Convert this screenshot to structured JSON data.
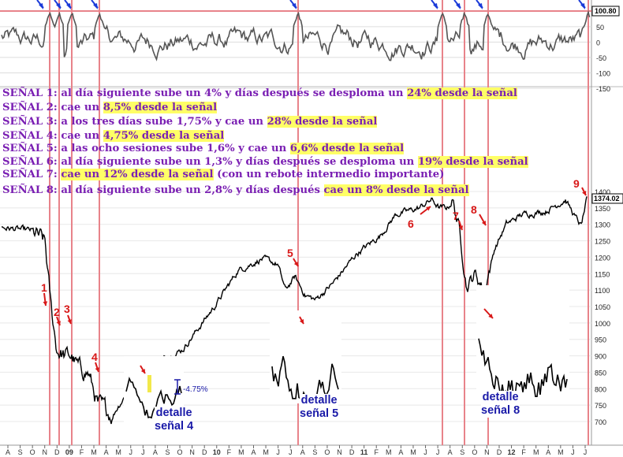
{
  "colors": {
    "background": "#ffffff",
    "price": "#000000",
    "oscillator": "#555555",
    "signal_line": "#e8838a",
    "arrow_red": "#d81818",
    "arrow_blue": "#1a3ad8",
    "text_purple": "#7a1fb3",
    "highlight": "#ffff66",
    "detail_text": "#1a1aa8"
  },
  "signals": [
    {
      "id": "1",
      "prefix": "SEÑAL 1: al día siguiente sube un 4% y días después se desploma un ",
      "highlight": "24% desde la señal",
      "suffix": ""
    },
    {
      "id": "2",
      "prefix": "SEÑAL 2:  cae un ",
      "highlight": "8,5% desde la señal",
      "suffix": ""
    },
    {
      "id": "3",
      "prefix": "SEÑAL 3:  a los tres días sube 1,75% y cae un ",
      "highlight": "28% desde la señal",
      "suffix": ""
    },
    {
      "id": "4",
      "prefix": "SEÑAL 4:  cae un ",
      "highlight": "4,75% desde la señal",
      "suffix": ""
    },
    {
      "id": "5",
      "prefix": "SEÑAL 5:  a las ocho sesiones sube 1,6% y cae un ",
      "highlight": "6,6% desde la señal",
      "suffix": ""
    },
    {
      "id": "6",
      "prefix": "SEÑAL 6: al día siguiente sube un 1,3% y días después se desploma un ",
      "highlight": "19% desde la señal",
      "suffix": ""
    },
    {
      "id": "7",
      "prefix": "SEÑAL 7: ",
      "highlight": "cae un 12% desde la señal",
      "suffix": " (con un rebote intermedio importante)"
    },
    {
      "id": "8",
      "prefix": "SEÑAL 8: al día siguiente sube un 2,8% y días después ",
      "highlight": "cae un 8% desde la señal",
      "suffix": ""
    }
  ],
  "details": [
    {
      "id": "4",
      "line1": "detalle",
      "line2": "señal 4",
      "annotation": "-4.75%"
    },
    {
      "id": "5",
      "line1": "detalle",
      "line2": "señal 5"
    },
    {
      "id": "8",
      "line1": "detalle",
      "line2": "señal 8"
    }
  ],
  "signal_numbers": [
    "1",
    "2",
    "3",
    "4",
    "5",
    "6",
    "7",
    "8",
    "9"
  ],
  "chart_data": [
    {
      "type": "line",
      "name_panel": "oscillator",
      "y_ticks": [
        50,
        0,
        -50,
        -100,
        -150
      ],
      "top_label": "100.80",
      "ylim": [
        -150,
        100
      ]
    },
    {
      "type": "line",
      "name_panel": "price",
      "y_ticks": [
        1400,
        1350,
        1300,
        1250,
        1200,
        1150,
        1100,
        1050,
        1000,
        950,
        900,
        850,
        800,
        750,
        700
      ],
      "last_value_label": "1374.02",
      "ylim": [
        670,
        1410
      ],
      "x_tick_labels": [
        "A",
        "S",
        "O",
        "N",
        "D",
        "09",
        "F",
        "M",
        "A",
        "M",
        "J",
        "J",
        "A",
        "S",
        "O",
        "N",
        "D",
        "10",
        "F",
        "M",
        "A",
        "M",
        "J",
        "J",
        "A",
        "S",
        "O",
        "N",
        "D",
        "11",
        "F",
        "M",
        "A",
        "M",
        "J",
        "J",
        "A",
        "S",
        "O",
        "N",
        "D",
        "12",
        "F",
        "M",
        "A",
        "M",
        "J",
        "J"
      ],
      "anchors_x": [
        0,
        40,
        55,
        63,
        70,
        80,
        88,
        98,
        110,
        122,
        140,
        160,
        190,
        230,
        270,
        300,
        330,
        350,
        360,
        372,
        385,
        398,
        420,
        450,
        480,
        500,
        515,
        530,
        545,
        555,
        565,
        572,
        580,
        590,
        600,
        612,
        625,
        640,
        660,
        690,
        715,
        728,
        735,
        742
      ],
      "anchors_y": [
        1290,
        1280,
        1245,
        1040,
        920,
        900,
        900,
        862,
        848,
        752,
        720,
        790,
        870,
        920,
        1050,
        1160,
        1195,
        1178,
        1100,
        1140,
        1085,
        1070,
        1120,
        1210,
        1265,
        1330,
        1340,
        1350,
        1375,
        1350,
        1350,
        1370,
        1290,
        1110,
        1150,
        1100,
        1225,
        1300,
        1330,
        1340,
        1375,
        1320,
        1295,
        1374
      ],
      "signal_x": [
        63,
        75,
        91,
        126,
        378,
        561,
        589,
        619,
        746
      ]
    }
  ]
}
